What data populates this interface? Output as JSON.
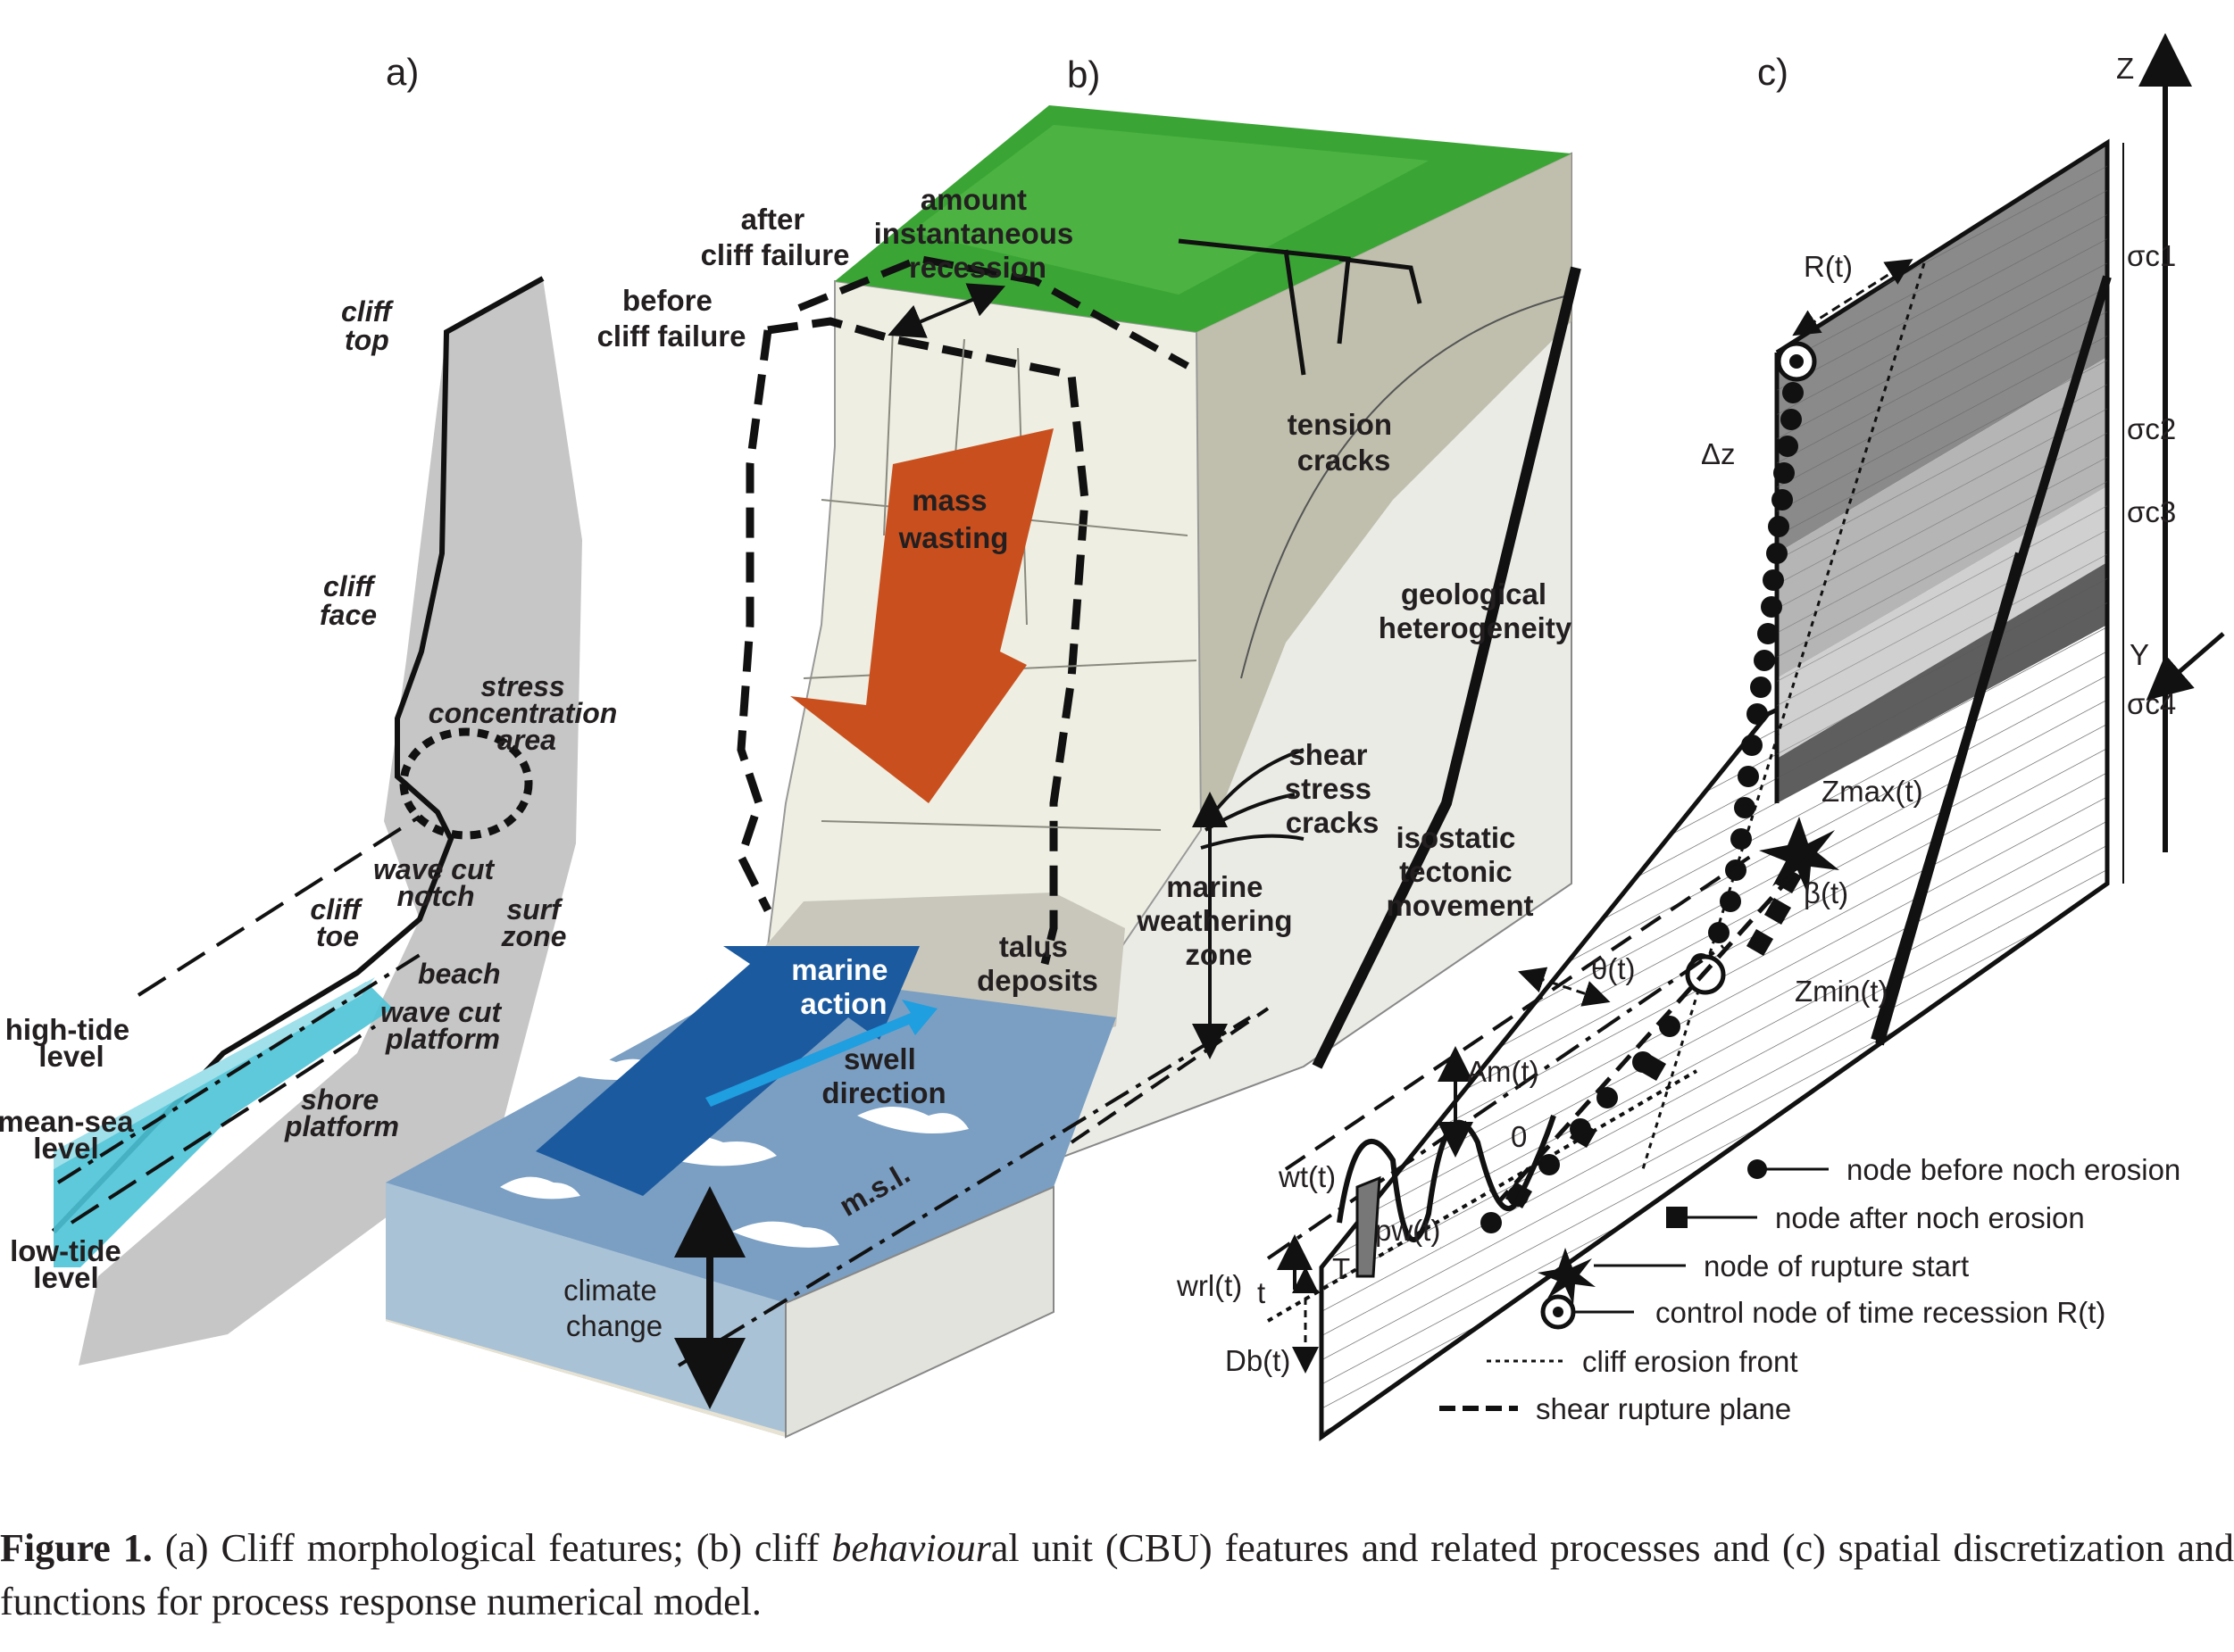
{
  "panels": {
    "a": "a)",
    "b": "b)",
    "c": "c)"
  },
  "panel_a": {
    "cliff_top": [
      "cliff",
      "top"
    ],
    "cliff_face": [
      "cliff",
      "face"
    ],
    "stress": [
      "stress",
      "concentration",
      "area"
    ],
    "wave_cut_notch": [
      "wave cut",
      "notch"
    ],
    "cliff_toe": [
      "cliff",
      "toe"
    ],
    "surf_zone": [
      "surf",
      "zone"
    ],
    "beach": "beach",
    "wave_cut_platform": [
      "wave cut",
      "platform"
    ],
    "shore_platform": [
      "shore",
      "platform"
    ],
    "high_tide": [
      "high-tide",
      "level"
    ],
    "mean_sea": [
      "mean-sea",
      "level"
    ],
    "low_tide": [
      "low-tide",
      "level"
    ]
  },
  "panel_b": {
    "after_failure": [
      "after",
      "cliff failure"
    ],
    "amount": [
      "amount",
      "instantaneous",
      "recession"
    ],
    "before_failure": [
      "before",
      "cliff failure"
    ],
    "tension": [
      "tension",
      "cracks"
    ],
    "mass_wasting": [
      "mass",
      "wasting"
    ],
    "geological": [
      "geological",
      "heterogeneity"
    ],
    "shear": [
      "shear",
      "stress",
      "cracks"
    ],
    "isostatic": [
      "isostatic",
      "tectonic",
      "movement"
    ],
    "marine_weathering": [
      "marine",
      "weathering",
      "zone"
    ],
    "talus": [
      "talus",
      "deposits"
    ],
    "marine_action": [
      "marine",
      "action"
    ],
    "swell": [
      "swell",
      "direction"
    ],
    "msl": "m.s.l.",
    "climate": [
      "climate",
      "change"
    ]
  },
  "panel_c": {
    "z_axis": "Z",
    "y_axis": "Y",
    "R": "R(t)",
    "dz": "Δz",
    "sigma": [
      "σc1",
      "σc2",
      "σc3",
      "σc4"
    ],
    "zmax": "Zmax(t)",
    "beta": "β(t)",
    "theta": "θ(t)",
    "zmin": "Zmin(t)",
    "am": "Am(t)",
    "zero": "0",
    "wt": "wt(t)",
    "pw": "pw(t)",
    "T": "T",
    "wrl": "wrl(t)",
    "t": "t",
    "db": "Db(t)"
  },
  "legend": [
    "node before noch erosion",
    "node after noch erosion",
    "node of rupture start",
    "control node of time recession R(t)",
    "cliff erosion front",
    "shear rupture plane"
  ],
  "caption": {
    "label": "Figure 1.",
    "text_1": " (a) Cliff morphological features; (b) cliff ",
    "italic": "behaviour",
    "text_2": "al unit (CBU) features and related processes and (c) spatial discretization and functions for process response numerical model."
  },
  "colors": {
    "grass": "#3aa535",
    "rock": "#e6e4d8",
    "sea": "#7a9fc3",
    "water_a": "#4cc3d6",
    "arrow_mass": "#c9501e",
    "arrow_marine": "#1c5a9f",
    "arrow_swell": "#1f9ee0",
    "layer_gray": [
      "#8a8a8a",
      "#b5b5b5",
      "#d0d0d0",
      "#5e5e5e"
    ]
  }
}
